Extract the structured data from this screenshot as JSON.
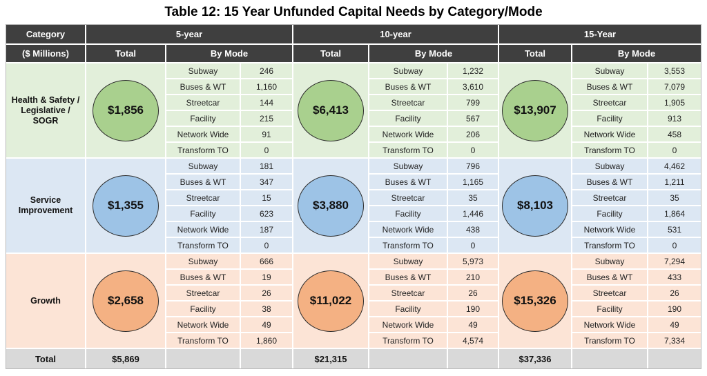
{
  "title": "Table 12: 15 Year Unfunded Capital Needs by Category/Mode",
  "colors": {
    "header_bg": "#3f3f3f",
    "header_text": "#ffffff",
    "footer_row_bg": "#d9d9d9",
    "grid_line": "#ffffff",
    "green_bg": "#e2efda",
    "green_circle": "#a9d08e",
    "blue_bg": "#dce7f3",
    "blue_circle": "#9dc3e6",
    "orange_bg": "#fce4d6",
    "orange_circle": "#f4b183"
  },
  "header": {
    "category_label": "Category",
    "units_label": "($ Millions)",
    "total_label": "Total",
    "by_mode_label": "By Mode",
    "periods": [
      "5-year",
      "10-year",
      "15-Year"
    ]
  },
  "mode_names": [
    "Subway",
    "Buses & WT",
    "Streetcar",
    "Facility",
    "Network Wide",
    "Transform TO"
  ],
  "rows": [
    {
      "category": "Health & Safety / Legislative / SOGR",
      "bg_color": "#e2efda",
      "circle_color": "#a9d08e",
      "periods": [
        {
          "total": "$1,856",
          "values": [
            "246",
            "1,160",
            "144",
            "215",
            "91",
            "0"
          ]
        },
        {
          "total": "$6,413",
          "values": [
            "1,232",
            "3,610",
            "799",
            "567",
            "206",
            "0"
          ]
        },
        {
          "total": "$13,907",
          "values": [
            "3,553",
            "7,079",
            "1,905",
            "913",
            "458",
            "0"
          ]
        }
      ]
    },
    {
      "category": "Service Improvement",
      "bg_color": "#dce7f3",
      "circle_color": "#9dc3e6",
      "periods": [
        {
          "total": "$1,355",
          "values": [
            "181",
            "347",
            "15",
            "623",
            "187",
            "0"
          ]
        },
        {
          "total": "$3,880",
          "values": [
            "796",
            "1,165",
            "35",
            "1,446",
            "438",
            "0"
          ]
        },
        {
          "total": "$8,103",
          "values": [
            "4,462",
            "1,211",
            "35",
            "1,864",
            "531",
            "0"
          ]
        }
      ]
    },
    {
      "category": "Growth",
      "bg_color": "#fce4d6",
      "circle_color": "#f4b183",
      "periods": [
        {
          "total": "$2,658",
          "values": [
            "666",
            "19",
            "26",
            "38",
            "49",
            "1,860"
          ]
        },
        {
          "total": "$11,022",
          "values": [
            "5,973",
            "210",
            "26",
            "190",
            "49",
            "4,574"
          ]
        },
        {
          "total": "$15,326",
          "values": [
            "7,294",
            "433",
            "26",
            "190",
            "49",
            "7,334"
          ]
        }
      ]
    }
  ],
  "footer": {
    "label": "Total",
    "totals": [
      "$5,869",
      "$21,315",
      "$37,336"
    ]
  }
}
